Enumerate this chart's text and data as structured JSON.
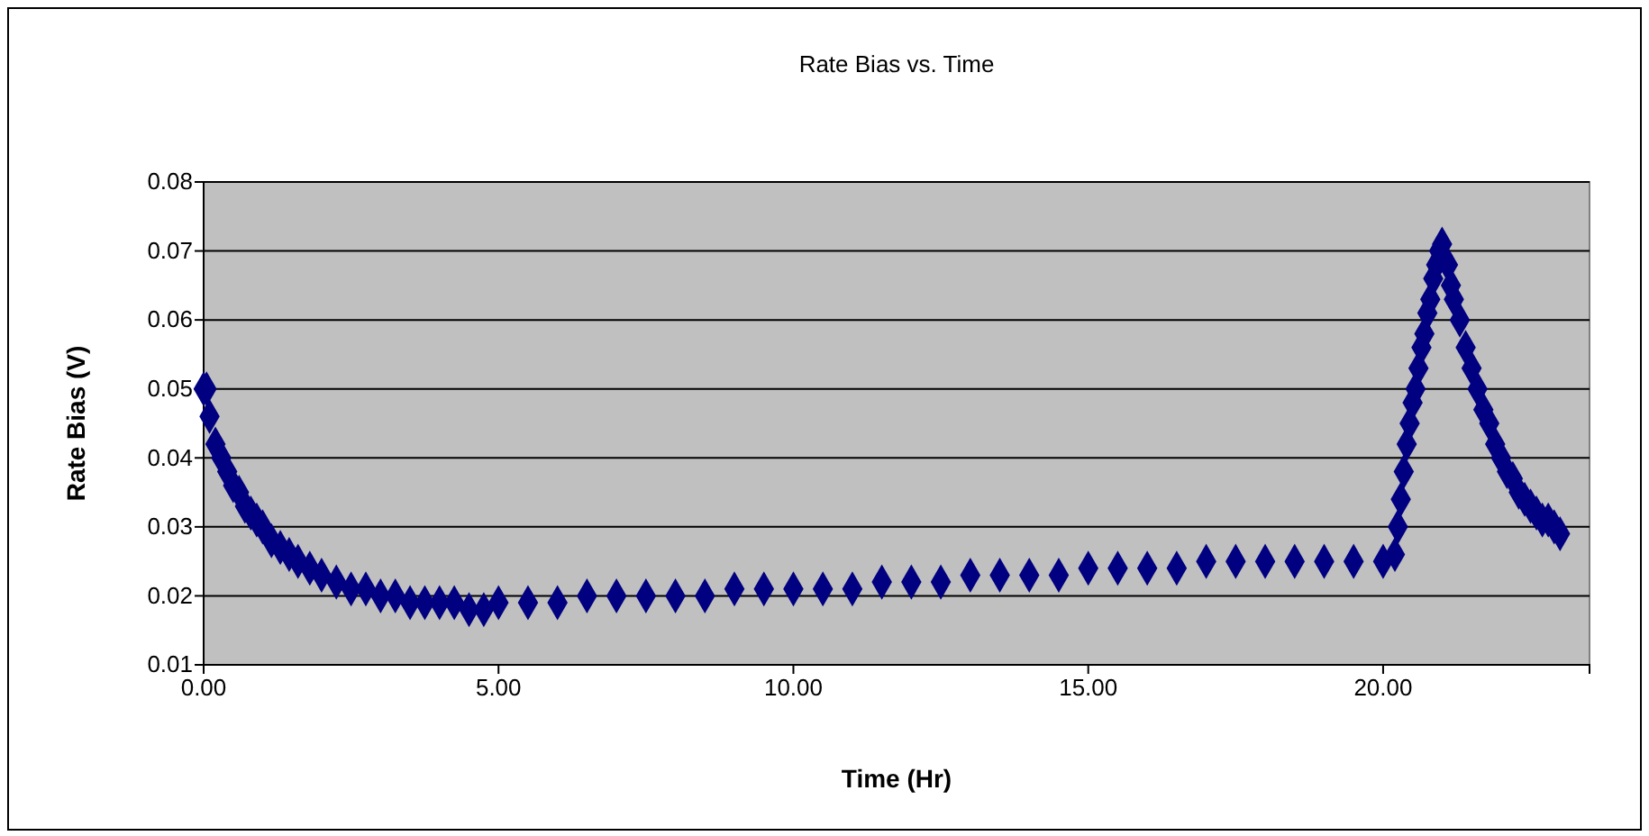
{
  "chart_data": {
    "type": "scatter",
    "title": "Rate Bias vs. Time",
    "xlabel": "Time (Hr)",
    "ylabel": "Rate Bias (V)",
    "xlim": [
      0,
      23.5
    ],
    "xticks": [
      {
        "value": 0,
        "label": "0.00"
      },
      {
        "value": 5,
        "label": "5.00"
      },
      {
        "value": 10,
        "label": "10.00"
      },
      {
        "value": 15,
        "label": "15.00"
      },
      {
        "value": 20,
        "label": "20.00"
      }
    ],
    "ylim": [
      0.01,
      0.08
    ],
    "yticks": [
      0.01,
      0.02,
      0.03,
      0.04,
      0.05,
      0.06,
      0.07,
      0.08
    ],
    "grid": "y",
    "marker": "diamond",
    "series": [
      {
        "color": "#000080",
        "x": [
          0,
          0.05,
          0.1,
          0.2,
          0.3,
          0.4,
          0.5,
          0.6,
          0.7,
          0.8,
          0.9,
          1.0,
          1.15,
          1.3,
          1.45,
          1.6,
          1.8,
          2.0,
          2.25,
          2.5,
          2.75,
          3.0,
          3.25,
          3.5,
          3.75,
          4.0,
          4.25,
          4.5,
          4.75,
          5.0,
          5.5,
          6.0,
          6.5,
          7.0,
          7.5,
          8.0,
          8.5,
          9.0,
          9.5,
          10.0,
          10.5,
          11.0,
          11.5,
          12.0,
          12.5,
          13.0,
          13.5,
          14.0,
          14.5,
          15.0,
          15.5,
          16.0,
          16.5,
          17.0,
          17.5,
          18.0,
          18.5,
          19.0,
          19.5,
          20.0,
          20.2,
          20.25,
          20.3,
          20.35,
          20.4,
          20.45,
          20.5,
          20.55,
          20.6,
          20.65,
          20.7,
          20.75,
          20.8,
          20.85,
          20.9,
          20.95,
          21.0,
          21.1,
          21.15,
          21.2,
          21.3,
          21.4,
          21.5,
          21.6,
          21.7,
          21.8,
          21.9,
          22.0,
          22.1,
          22.2,
          22.3,
          22.4,
          22.5,
          22.6,
          22.7,
          22.8,
          22.9,
          23.0
        ],
        "values": [
          0.05,
          0.05,
          0.046,
          0.042,
          0.04,
          0.038,
          0.036,
          0.035,
          0.033,
          0.032,
          0.031,
          0.03,
          0.028,
          0.027,
          0.026,
          0.025,
          0.024,
          0.023,
          0.022,
          0.021,
          0.021,
          0.02,
          0.02,
          0.019,
          0.019,
          0.019,
          0.019,
          0.018,
          0.018,
          0.019,
          0.019,
          0.019,
          0.02,
          0.02,
          0.02,
          0.02,
          0.02,
          0.021,
          0.021,
          0.021,
          0.021,
          0.021,
          0.022,
          0.022,
          0.022,
          0.023,
          0.023,
          0.023,
          0.023,
          0.024,
          0.024,
          0.024,
          0.024,
          0.025,
          0.025,
          0.025,
          0.025,
          0.025,
          0.025,
          0.025,
          0.026,
          0.03,
          0.034,
          0.038,
          0.042,
          0.045,
          0.048,
          0.05,
          0.053,
          0.056,
          0.058,
          0.061,
          0.063,
          0.066,
          0.068,
          0.07,
          0.071,
          0.068,
          0.065,
          0.063,
          0.06,
          0.056,
          0.053,
          0.05,
          0.047,
          0.045,
          0.042,
          0.04,
          0.038,
          0.037,
          0.035,
          0.034,
          0.033,
          0.032,
          0.031,
          0.031,
          0.03,
          0.029
        ]
      }
    ]
  }
}
